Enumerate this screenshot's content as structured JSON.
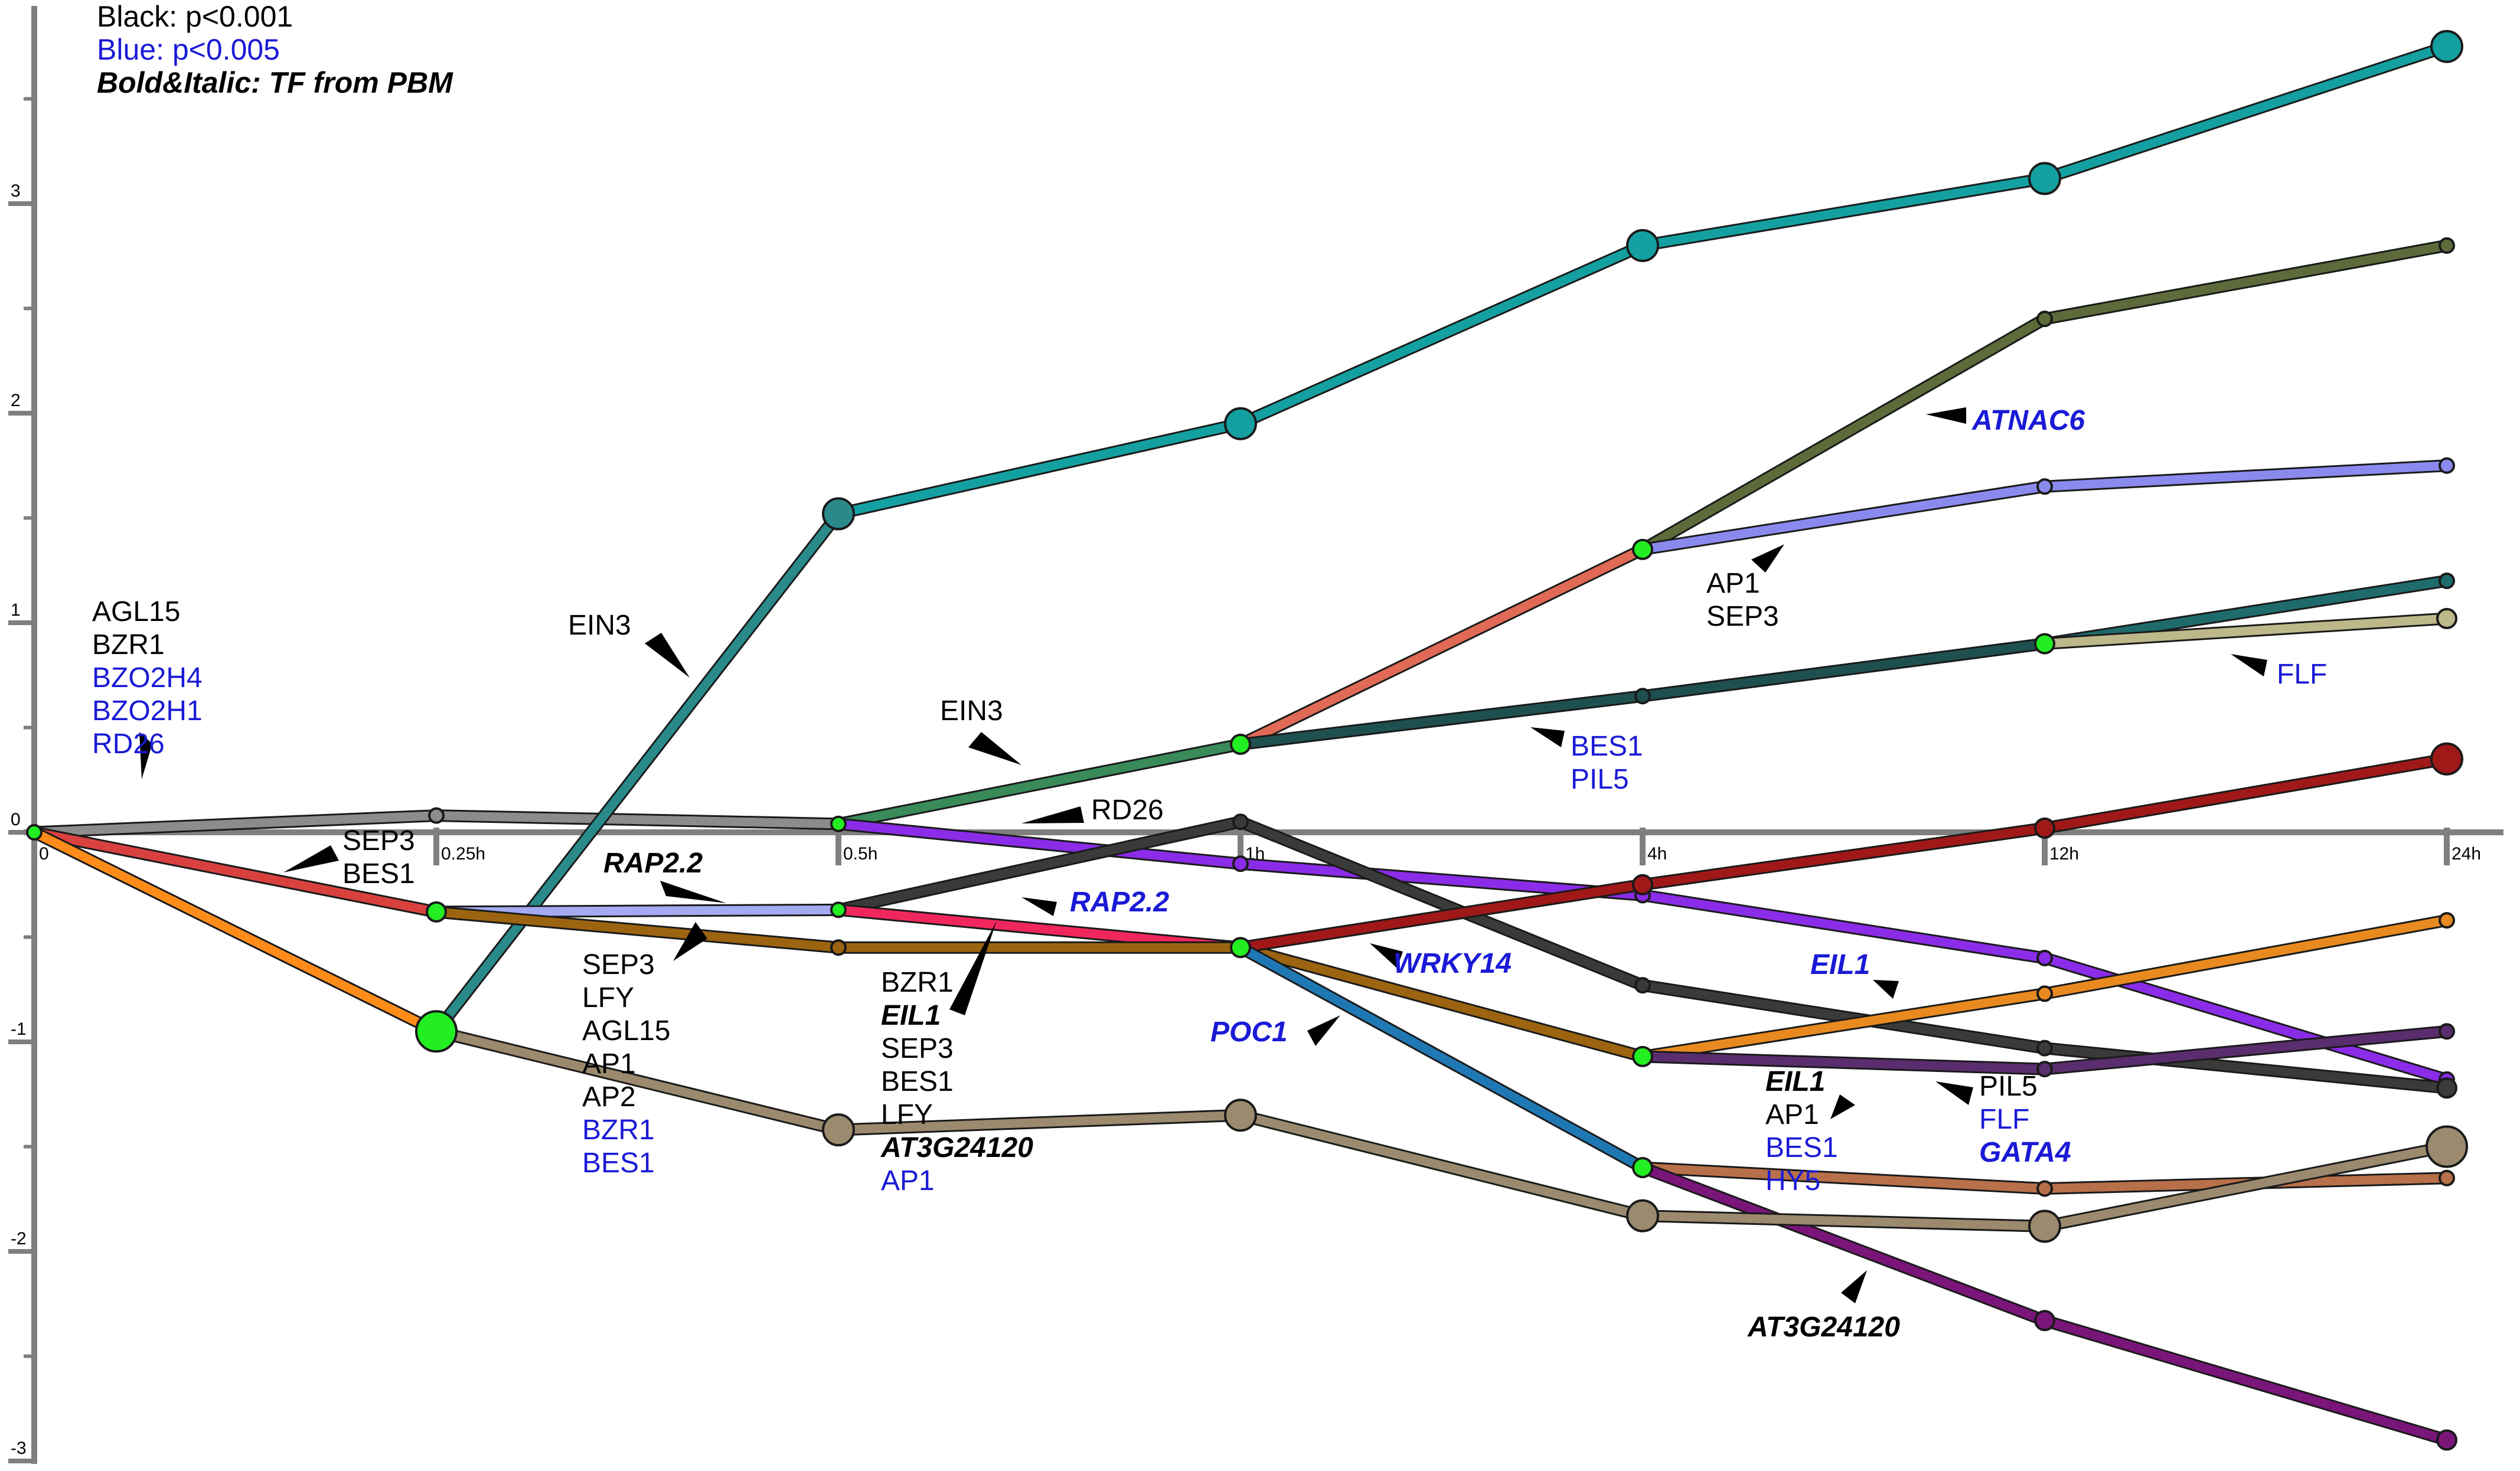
{
  "legend": {
    "line1": "Black: p<0.001",
    "line2": "Blue: p<0.005",
    "line3": "Bold&Italic: TF from PBM"
  },
  "colors": {
    "significant": "#000000",
    "suggestive": "#1a1ad6",
    "axis": "#7f7f7f"
  },
  "chart_data": {
    "type": "line",
    "x_ticks": [
      "0",
      "0.25h",
      "0.5h",
      "1h",
      "4h",
      "12h",
      "24h"
    ],
    "y_ticks": [
      -3,
      -2,
      -1,
      0,
      1,
      2,
      3
    ],
    "ylim": [
      -3.1,
      3.7
    ],
    "grid": false,
    "nodes": [
      {
        "id": "root",
        "t": 0,
        "y": 0,
        "r": "s"
      },
      {
        "id": "g1",
        "t": 1,
        "y": 0.08,
        "r": "s"
      },
      {
        "id": "g2",
        "t": 2,
        "y": 0.04,
        "r": "s"
      },
      {
        "id": "red1",
        "t": 1,
        "y": -0.38,
        "r": "m"
      },
      {
        "id": "big1",
        "t": 1,
        "y": -0.95,
        "r": "xl"
      },
      {
        "id": "teal2",
        "t": 2,
        "y": 1.52,
        "r": "l"
      },
      {
        "id": "teal3",
        "t": 3,
        "y": 1.95,
        "r": "l"
      },
      {
        "id": "teal4",
        "t": 4,
        "y": 2.8,
        "r": "l"
      },
      {
        "id": "teal5",
        "t": 5,
        "y": 3.12,
        "r": "l"
      },
      {
        "id": "teal6",
        "t": 6,
        "y": 3.75,
        "r": "l"
      },
      {
        "id": "a2",
        "t": 3,
        "y": 0.42,
        "r": "m"
      },
      {
        "id": "b3",
        "t": 4,
        "y": 1.35,
        "r": "m"
      },
      {
        "id": "o5",
        "t": 5,
        "y": 2.45,
        "r": "s"
      },
      {
        "id": "o6",
        "t": 6,
        "y": 2.8,
        "r": "s"
      },
      {
        "id": "l5",
        "t": 5,
        "y": 1.65,
        "r": "s"
      },
      {
        "id": "l6",
        "t": 6,
        "y": 1.75,
        "r": "s"
      },
      {
        "id": "dt4",
        "t": 4,
        "y": 0.65,
        "r": "s"
      },
      {
        "id": "e5",
        "t": 5,
        "y": 0.9,
        "r": "m"
      },
      {
        "id": "dt6",
        "t": 6,
        "y": 1.2,
        "r": "s"
      },
      {
        "id": "k6",
        "t": 6,
        "y": 1.02,
        "r": "m"
      },
      {
        "id": "p3",
        "t": 3,
        "y": -0.15,
        "r": "s"
      },
      {
        "id": "p4",
        "t": 4,
        "y": -0.3,
        "r": "s"
      },
      {
        "id": "p5",
        "t": 5,
        "y": -0.6,
        "r": "s"
      },
      {
        "id": "p6",
        "t": 6,
        "y": -1.18,
        "r": "s"
      },
      {
        "id": "lb2",
        "t": 2,
        "y": -0.37,
        "r": "s"
      },
      {
        "id": "bn2",
        "t": 2,
        "y": -0.55,
        "r": "s"
      },
      {
        "id": "dk3",
        "t": 3,
        "y": 0.05,
        "r": "s"
      },
      {
        "id": "dk4",
        "t": 4,
        "y": -0.73,
        "r": "s"
      },
      {
        "id": "dk5",
        "t": 5,
        "y": -1.03,
        "r": "s"
      },
      {
        "id": "dk6",
        "t": 6,
        "y": -1.22,
        "r": "m"
      },
      {
        "id": "c3",
        "t": 3,
        "y": -0.55,
        "r": "m"
      },
      {
        "id": "c4",
        "t": 4,
        "y": -1.07,
        "r": "m"
      },
      {
        "id": "or5",
        "t": 5,
        "y": -0.77,
        "r": "s"
      },
      {
        "id": "or6",
        "t": 6,
        "y": -0.42,
        "r": "s"
      },
      {
        "id": "pu5",
        "t": 5,
        "y": -1.13,
        "r": "s"
      },
      {
        "id": "pu6",
        "t": 6,
        "y": -0.95,
        "r": "s"
      },
      {
        "id": "dr4",
        "t": 4,
        "y": -0.25,
        "r": "m"
      },
      {
        "id": "dr5",
        "t": 5,
        "y": 0.02,
        "r": "m"
      },
      {
        "id": "dr6",
        "t": 6,
        "y": 0.35,
        "r": "l"
      },
      {
        "id": "bl4",
        "t": 4,
        "y": -1.6,
        "r": "m"
      },
      {
        "id": "cp5",
        "t": 5,
        "y": -1.7,
        "r": "s"
      },
      {
        "id": "cp6",
        "t": 6,
        "y": -1.65,
        "r": "s"
      },
      {
        "id": "vi5",
        "t": 5,
        "y": -2.33,
        "r": "m"
      },
      {
        "id": "vi6",
        "t": 6,
        "y": -2.9,
        "r": "m"
      },
      {
        "id": "br2",
        "t": 2,
        "y": -1.42,
        "r": "l"
      },
      {
        "id": "br3",
        "t": 3,
        "y": -1.35,
        "r": "l"
      },
      {
        "id": "br4",
        "t": 4,
        "y": -1.83,
        "r": "l"
      },
      {
        "id": "br5",
        "t": 5,
        "y": -1.88,
        "r": "l"
      },
      {
        "id": "br6",
        "t": 6,
        "y": -1.5,
        "r": "xl"
      }
    ],
    "edges": [
      {
        "from": "root",
        "to": "g1",
        "color": "#8c8c8c"
      },
      {
        "from": "g1",
        "to": "g2",
        "color": "#8c8c8c"
      },
      {
        "from": "root",
        "to": "red1",
        "color": "#d9413f"
      },
      {
        "from": "root",
        "to": "big1",
        "color": "#ff8c1a"
      },
      {
        "from": "big1",
        "to": "teal2",
        "color": "#2a8a8a"
      },
      {
        "from": "teal2",
        "to": "teal3",
        "color": "#14a0a0"
      },
      {
        "from": "teal3",
        "to": "teal4",
        "color": "#14a0a0"
      },
      {
        "from": "teal4",
        "to": "teal5",
        "color": "#14a0a0"
      },
      {
        "from": "teal5",
        "to": "teal6",
        "color": "#14a0a0"
      },
      {
        "from": "g2",
        "to": "a2",
        "color": "#3a8a5a"
      },
      {
        "from": "a2",
        "to": "b3",
        "color": "#e06a55"
      },
      {
        "from": "b3",
        "to": "o5",
        "color": "#5d6b3a"
      },
      {
        "from": "o5",
        "to": "o6",
        "color": "#5d6b3a"
      },
      {
        "from": "b3",
        "to": "l5",
        "color": "#8a8aee"
      },
      {
        "from": "l5",
        "to": "l6",
        "color": "#8a8aee"
      },
      {
        "from": "a2",
        "to": "dt4",
        "color": "#1f5050"
      },
      {
        "from": "dt4",
        "to": "e5",
        "color": "#1f5050"
      },
      {
        "from": "e5",
        "to": "dt6",
        "color": "#1f6b6b"
      },
      {
        "from": "e5",
        "to": "k6",
        "color": "#bdb88a"
      },
      {
        "from": "g2",
        "to": "p3",
        "color": "#8a2ce8"
      },
      {
        "from": "p3",
        "to": "p4",
        "color": "#8a2ce8"
      },
      {
        "from": "p4",
        "to": "p5",
        "color": "#8a2ce8"
      },
      {
        "from": "p5",
        "to": "p6",
        "color": "#8a2ce8"
      },
      {
        "from": "red1",
        "to": "lb2",
        "color": "#a4aaf2"
      },
      {
        "from": "red1",
        "to": "bn2",
        "color": "#9c6410"
      },
      {
        "from": "lb2",
        "to": "dk3",
        "color": "#3a3a3a"
      },
      {
        "from": "dk3",
        "to": "dk4",
        "color": "#3a3a3a"
      },
      {
        "from": "dk4",
        "to": "dk5",
        "color": "#3a3a3a"
      },
      {
        "from": "dk5",
        "to": "dk6",
        "color": "#3a3a3a"
      },
      {
        "from": "lb2",
        "to": "c3",
        "color": "#f0275d"
      },
      {
        "from": "bn2",
        "to": "c3",
        "color": "#9c6410"
      },
      {
        "from": "c3",
        "to": "c4",
        "color": "#9c6410"
      },
      {
        "from": "c4",
        "to": "or5",
        "color": "#e88a1f"
      },
      {
        "from": "or5",
        "to": "or6",
        "color": "#e88a1f"
      },
      {
        "from": "c4",
        "to": "pu5",
        "color": "#5a2d6e"
      },
      {
        "from": "pu5",
        "to": "pu6",
        "color": "#5a2d6e"
      },
      {
        "from": "c3",
        "to": "dr4",
        "color": "#a01818"
      },
      {
        "from": "dr4",
        "to": "dr5",
        "color": "#a01818"
      },
      {
        "from": "dr5",
        "to": "dr6",
        "color": "#a01818"
      },
      {
        "from": "c3",
        "to": "bl4",
        "color": "#1f78b4"
      },
      {
        "from": "bl4",
        "to": "cp5",
        "color": "#b8704a"
      },
      {
        "from": "cp5",
        "to": "cp6",
        "color": "#b8704a"
      },
      {
        "from": "bl4",
        "to": "vi5",
        "color": "#7a157a"
      },
      {
        "from": "vi5",
        "to": "vi6",
        "color": "#7a157a"
      },
      {
        "from": "big1",
        "to": "br2",
        "color": "#9b8a6e"
      },
      {
        "from": "br2",
        "to": "br3",
        "color": "#9b8a6e"
      },
      {
        "from": "br3",
        "to": "br4",
        "color": "#9b8a6e"
      },
      {
        "from": "br4",
        "to": "br5",
        "color": "#9b8a6e"
      },
      {
        "from": "br5",
        "to": "br6",
        "color": "#9b8a6e"
      }
    ],
    "green_nodes": [
      "root",
      "red1",
      "big1",
      "g2",
      "a2",
      "b3",
      "e5",
      "lb2",
      "c3",
      "c4",
      "bl4"
    ],
    "annotations": [
      {
        "lines": [
          {
            "text": "AGL15",
            "sig": "black",
            "pbm": false
          },
          {
            "text": "BZR1",
            "sig": "black",
            "pbm": false
          },
          {
            "text": "BZO2H4",
            "sig": "blue",
            "pbm": false
          },
          {
            "text": "BZO2H1",
            "sig": "blue",
            "pbm": false
          },
          {
            "text": "RD26",
            "sig": "blue",
            "pbm": false
          }
        ]
      },
      {
        "lines": [
          {
            "text": "EIN3",
            "sig": "black",
            "pbm": false
          }
        ]
      },
      {
        "lines": [
          {
            "text": "SEP3",
            "sig": "black",
            "pbm": false
          },
          {
            "text": "BES1",
            "sig": "black",
            "pbm": false
          }
        ]
      },
      {
        "lines": [
          {
            "text": "RAP2.2",
            "sig": "black",
            "pbm": true
          }
        ]
      },
      {
        "lines": [
          {
            "text": "SEP3",
            "sig": "black",
            "pbm": false
          },
          {
            "text": "LFY",
            "sig": "black",
            "pbm": false
          },
          {
            "text": "AGL15",
            "sig": "black",
            "pbm": false
          },
          {
            "text": "AP1",
            "sig": "black",
            "pbm": false
          },
          {
            "text": "AP2",
            "sig": "black",
            "pbm": false
          },
          {
            "text": "BZR1",
            "sig": "blue",
            "pbm": false
          },
          {
            "text": "BES1",
            "sig": "blue",
            "pbm": false
          }
        ]
      },
      {
        "lines": [
          {
            "text": "EIN3",
            "sig": "black",
            "pbm": false
          }
        ]
      },
      {
        "lines": [
          {
            "text": "RD26",
            "sig": "black",
            "pbm": false
          }
        ]
      },
      {
        "lines": [
          {
            "text": "RAP2.2",
            "sig": "blue",
            "pbm": true
          }
        ]
      },
      {
        "lines": [
          {
            "text": "BZR1",
            "sig": "black",
            "pbm": false
          },
          {
            "text": "EIL1",
            "sig": "black",
            "pbm": true
          },
          {
            "text": "SEP3",
            "sig": "black",
            "pbm": false
          },
          {
            "text": "BES1",
            "sig": "black",
            "pbm": false
          },
          {
            "text": "LFY",
            "sig": "black",
            "pbm": false
          },
          {
            "text": "AT3G24120",
            "sig": "black",
            "pbm": true
          },
          {
            "text": "AP1",
            "sig": "blue",
            "pbm": false
          }
        ]
      },
      {
        "lines": [
          {
            "text": "POC1",
            "sig": "blue",
            "pbm": true
          }
        ]
      },
      {
        "lines": [
          {
            "text": "WRKY14",
            "sig": "blue",
            "pbm": true
          }
        ]
      },
      {
        "lines": [
          {
            "text": "ATNAC6",
            "sig": "blue",
            "pbm": true
          }
        ]
      },
      {
        "lines": [
          {
            "text": "AP1",
            "sig": "black",
            "pbm": false
          },
          {
            "text": "SEP3",
            "sig": "black",
            "pbm": false
          }
        ]
      },
      {
        "lines": [
          {
            "text": "BES1",
            "sig": "blue",
            "pbm": false
          },
          {
            "text": "PIL5",
            "sig": "blue",
            "pbm": false
          }
        ]
      },
      {
        "lines": [
          {
            "text": "FLF",
            "sig": "blue",
            "pbm": false
          }
        ]
      },
      {
        "lines": [
          {
            "text": "EIL1",
            "sig": "blue",
            "pbm": true
          }
        ]
      },
      {
        "lines": [
          {
            "text": "EIL1",
            "sig": "black",
            "pbm": true
          },
          {
            "text": "AP1",
            "sig": "black",
            "pbm": false
          },
          {
            "text": "BES1",
            "sig": "blue",
            "pbm": false
          },
          {
            "text": "HY5",
            "sig": "blue",
            "pbm": false
          }
        ]
      },
      {
        "lines": [
          {
            "text": "PIL5",
            "sig": "black",
            "pbm": false
          },
          {
            "text": "FLF",
            "sig": "blue",
            "pbm": false
          },
          {
            "text": "GATA4",
            "sig": "blue",
            "pbm": true
          }
        ]
      },
      {
        "lines": [
          {
            "text": "AT3G24120",
            "sig": "black",
            "pbm": true
          }
        ]
      }
    ]
  }
}
